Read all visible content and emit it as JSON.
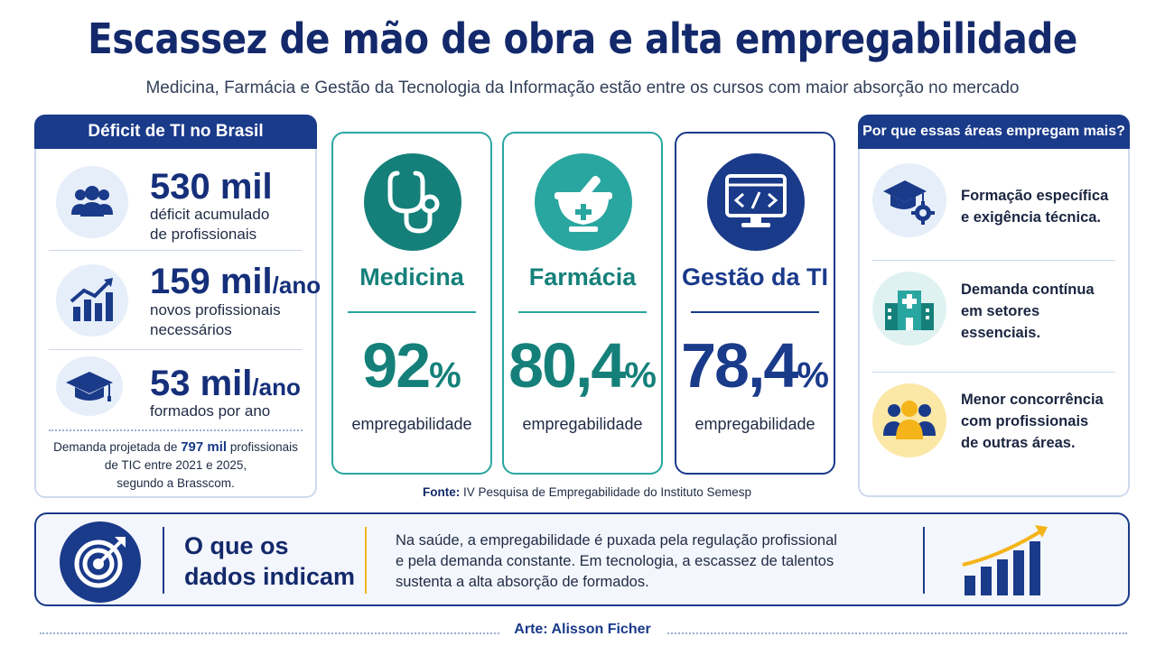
{
  "header": {
    "title": "Escassez de mão de obra e alta empregabilidade",
    "subtitle": "Medicina, Farmácia e Gestão da Tecnologia da Informação estão entre os cursos com maior absorção no mercado"
  },
  "left_panel": {
    "title": "Déficit de TI no Brasil",
    "stats": [
      {
        "value": "530 mil",
        "unit": "",
        "desc1": "déficit acumulado",
        "desc2": "de profissionais",
        "icon": "people-icon"
      },
      {
        "value": "159 mil",
        "unit": "/ano",
        "desc1": "novos profissionais",
        "desc2": "necessários",
        "icon": "growth-chart-icon"
      },
      {
        "value": "53 mil",
        "unit": "/ano",
        "desc1": "formados por ano",
        "desc2": "",
        "icon": "graduation-cap-icon"
      }
    ],
    "footnote_pre": "Demanda projetada de",
    "footnote_value": "797 mil",
    "footnote_mid": "profissionais",
    "footnote_line2": "de TIC entre 2021 e 2025,",
    "footnote_line3": "segundo a Brasscom."
  },
  "cards": [
    {
      "name": "Medicina",
      "percent": "92",
      "suffix": "%",
      "label": "empregabilidade",
      "icon": "stethoscope-icon",
      "color": "#15807a"
    },
    {
      "name": "Farmácia",
      "percent": "80,4",
      "suffix": "%",
      "label": "empregabilidade",
      "icon": "mortar-pestle-icon",
      "color": "#15807a"
    },
    {
      "name": "Gestão da TI",
      "percent": "78,4",
      "suffix": "%",
      "label": "empregabilidade",
      "icon": "computer-code-icon",
      "color": "#1a3a8a"
    }
  ],
  "source": {
    "label": "Fonte:",
    "text": "IV Pesquisa de Empregabilidade do Instituto Semesp"
  },
  "right_panel": {
    "title": "Por que essas áreas empregam mais?",
    "reasons": [
      {
        "line1": "Formação específica",
        "line2": "e exigência técnica.",
        "line3": "",
        "icon": "graduation-gear-icon"
      },
      {
        "line1": "Demanda contínua",
        "line2": "em setores",
        "line3": "essenciais.",
        "icon": "hospital-icon"
      },
      {
        "line1": "Menor concorrência",
        "line2": "com profissionais",
        "line3": "de outras áreas.",
        "icon": "team-icon"
      }
    ]
  },
  "banner": {
    "title_line1": "O que os",
    "title_line2": "dados indicam",
    "text_line1": "Na saúde, a empregabilidade é puxada pela regulação profissional",
    "text_line2": "e pela demanda constante. Em tecnologia, a escassez de talentos",
    "text_line3": "sustenta a alta absorção de formados."
  },
  "footer": {
    "credit": "Arte:  Alisson Ficher"
  },
  "colors": {
    "navy": "#1a3a8a",
    "teal": "#15807a",
    "teal_light": "#2aa6a0",
    "accent_yellow": "#f4b41a"
  }
}
